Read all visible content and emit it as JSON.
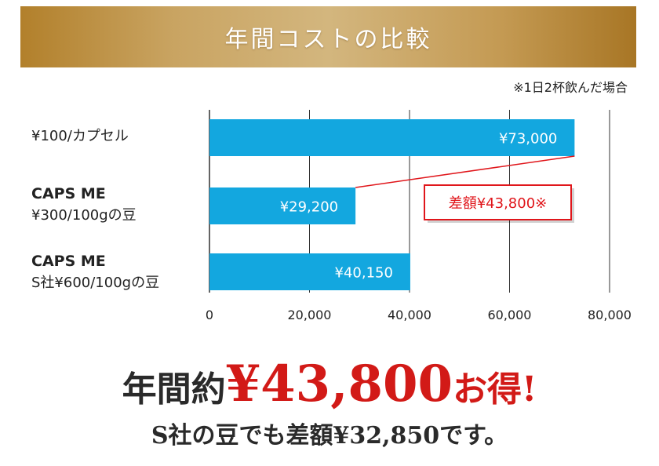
{
  "banner": {
    "title": "年間コストの比較"
  },
  "note": "※1日2杯飲んだ場合",
  "categories": [
    {
      "line1": "¥100/カプセル",
      "line2": ""
    },
    {
      "line1": "CAPS ME",
      "line2": "¥300/100gの豆"
    },
    {
      "line1": "CAPS ME",
      "line2": "S社¥600/100gの豆"
    }
  ],
  "chart_data": {
    "type": "bar",
    "orientation": "horizontal",
    "categories": [
      "¥100/カプセル",
      "CAPS ME ¥300/100gの豆",
      "CAPS ME S社¥600/100gの豆"
    ],
    "values": [
      73000,
      29200,
      40150
    ],
    "data_labels": [
      "¥73,000",
      "¥29,200",
      "¥40,150"
    ],
    "xlim": [
      0,
      80000
    ],
    "x_ticks": [
      0,
      20000,
      40000,
      60000,
      80000
    ],
    "x_tick_labels": [
      "0",
      "20,000",
      "40,000",
      "60,000",
      "80,000"
    ],
    "grid": true,
    "bar_color": "#13a7df",
    "annotation": {
      "text": "差額¥43,800※",
      "color": "#e0161b"
    }
  },
  "headline": {
    "pre": "年間約",
    "amount": "¥43,800",
    "post": "お得!"
  },
  "subline": "S社の豆でも差額¥32,850です。",
  "colors": {
    "accent": "#d21a17",
    "gold": "#c49a53"
  }
}
